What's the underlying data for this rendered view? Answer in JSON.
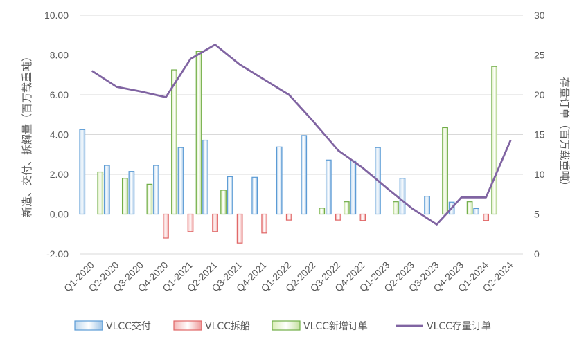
{
  "chart_data": {
    "type": "bar",
    "categories": [
      "Q1-2020",
      "Q2-2020",
      "Q3-2020",
      "Q4-2020",
      "Q1-2021",
      "Q2-2021",
      "Q3-2021",
      "Q4-2021",
      "Q1-2022",
      "Q2-2022",
      "Q3-2022",
      "Q4-2022",
      "Q1-2023",
      "Q2-2023",
      "Q3-2023",
      "Q4-2023",
      "Q1-2024",
      "Q2-2024"
    ],
    "series": [
      {
        "name": "VLCC交付",
        "type": "bar",
        "axis": "left",
        "color": "#5B9BD5",
        "values": [
          4.25,
          2.45,
          2.15,
          2.45,
          3.35,
          3.72,
          1.88,
          1.85,
          3.38,
          3.95,
          2.72,
          2.68,
          3.35,
          1.8,
          0.9,
          0.6,
          0.28,
          null
        ]
      },
      {
        "name": "VLCC拆船",
        "type": "bar",
        "axis": "left",
        "color": "#E06666",
        "values": [
          0,
          0,
          0,
          -1.2,
          -0.88,
          -0.88,
          -1.45,
          -0.95,
          -0.3,
          0,
          -0.3,
          -0.32,
          0,
          0,
          0,
          0,
          -0.32,
          null
        ]
      },
      {
        "name": "VLCC新增订单",
        "type": "bar",
        "axis": "left",
        "color": "#A9D18E",
        "values": [
          2.12,
          1.8,
          1.5,
          7.25,
          8.18,
          1.2,
          0,
          0,
          0,
          0.3,
          0.62,
          0,
          0.62,
          0,
          4.35,
          0.62,
          7.42,
          null
        ]
      },
      {
        "name": "VLCC存量订单",
        "type": "line",
        "axis": "right",
        "color": "#8064A2",
        "values": [
          23.0,
          21.0,
          20.4,
          19.7,
          24.5,
          26.3,
          23.8,
          21.9,
          20.0,
          16.6,
          13.0,
          10.8,
          8.2,
          5.7,
          3.7,
          7.1,
          7.1,
          14.3
        ]
      }
    ],
    "ylabel": "新造、交付、拆解量（百万载重吨）",
    "y2label": "存量订单（百万载重吨）",
    "ylim": [
      -2,
      10
    ],
    "y2lim": [
      0,
      30
    ],
    "yticks": [
      "-2.00",
      "0.00",
      "2.00",
      "4.00",
      "6.00",
      "8.00",
      "10.00"
    ],
    "y2ticks": [
      "0",
      "5",
      "10",
      "15",
      "20",
      "25",
      "30"
    ],
    "grid": true,
    "legend_position": "bottom"
  }
}
